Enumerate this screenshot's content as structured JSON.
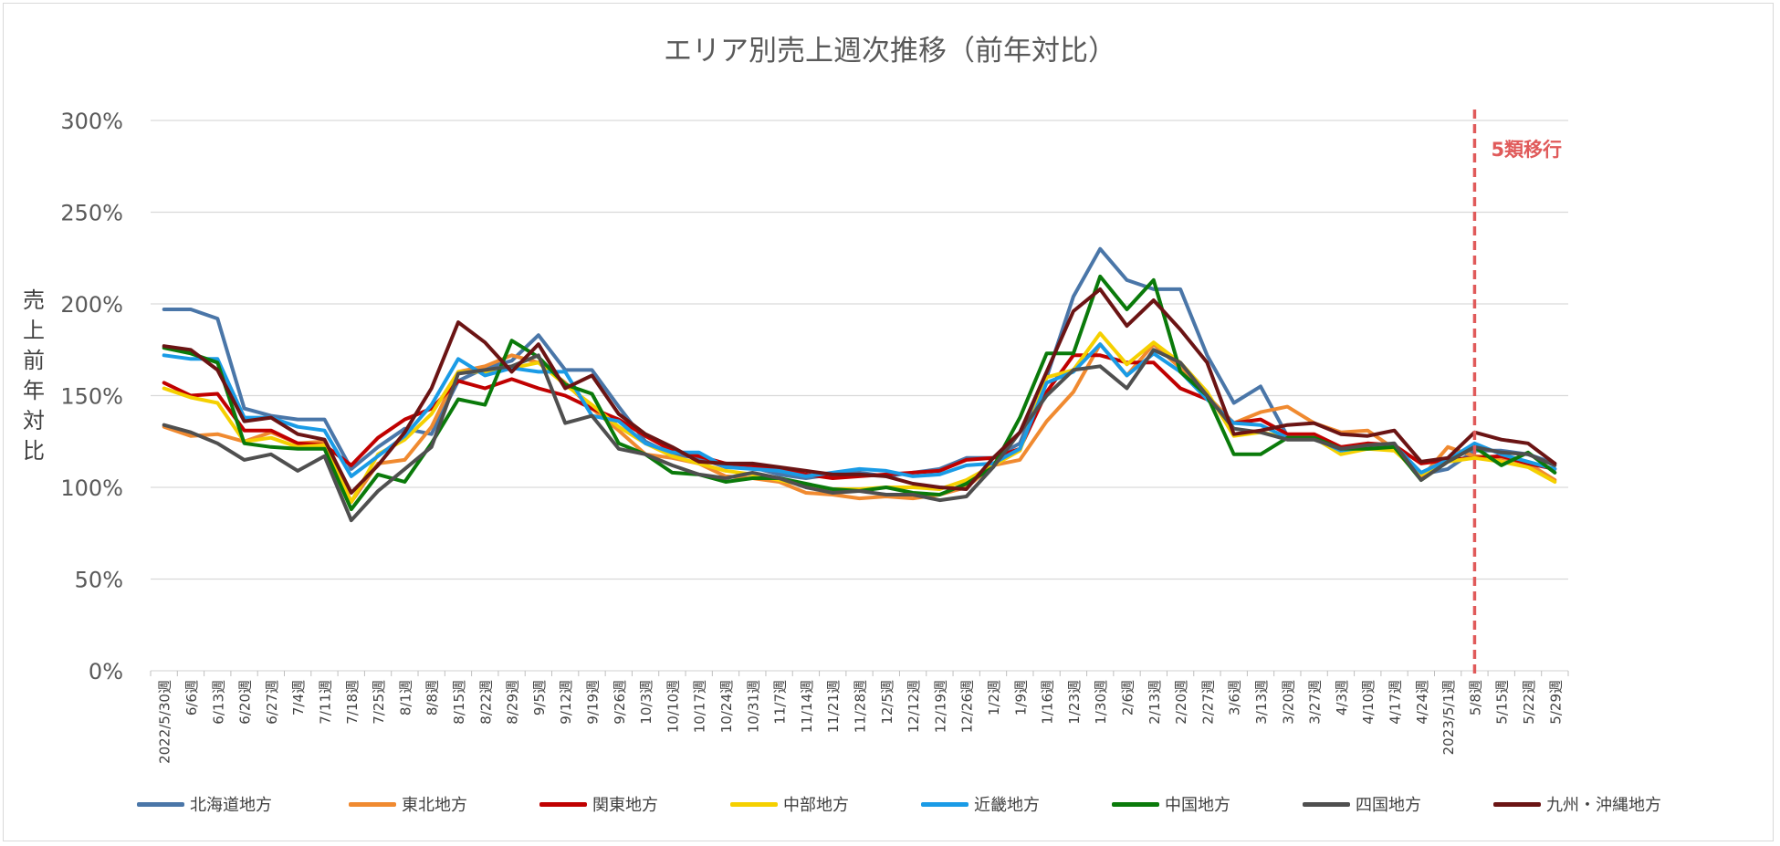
{
  "chart_data": {
    "type": "line",
    "title": "エリア別売上週次推移（前年対比）",
    "ylabel": "売上前年対比",
    "ylim": [
      0,
      300
    ],
    "yticks": [
      "0%",
      "50%",
      "100%",
      "150%",
      "200%",
      "250%",
      "300%"
    ],
    "grid": true,
    "legend_position": "bottom",
    "categories": [
      "2022/5/30週",
      "6/6週",
      "6/13週",
      "6/20週",
      "6/27週",
      "7/4週",
      "7/11週",
      "7/18週",
      "7/25週",
      "8/1週",
      "8/8週",
      "8/15週",
      "8/22週",
      "8/29週",
      "9/5週",
      "9/12週",
      "9/19週",
      "9/26週",
      "10/3週",
      "10/10週",
      "10/17週",
      "10/24週",
      "10/31週",
      "11/7週",
      "11/14週",
      "11/21週",
      "11/28週",
      "12/5週",
      "12/12週",
      "12/19週",
      "12/26週",
      "1/2週",
      "1/9週",
      "1/16週",
      "1/23週",
      "1/30週",
      "2/6週",
      "2/13週",
      "2/20週",
      "2/27週",
      "3/6週",
      "3/13週",
      "3/20週",
      "3/27週",
      "4/3週",
      "4/10週",
      "4/17週",
      "4/24週",
      "2023/5/1週",
      "5/8週",
      "5/15週",
      "5/22週",
      "5/29週"
    ],
    "annotation": {
      "label": "5類移行",
      "category": "5/8週",
      "color": "#e05a5a"
    },
    "series": [
      {
        "name": "北海道地方",
        "color": "#4a76a8",
        "values": [
          197,
          197,
          192,
          143,
          139,
          137,
          137,
          110,
          122,
          132,
          129,
          158,
          165,
          169,
          183,
          164,
          164,
          144,
          125,
          118,
          116,
          111,
          111,
          107,
          105,
          107,
          108,
          106,
          108,
          110,
          116,
          116,
          124,
          160,
          204,
          230,
          213,
          208,
          208,
          172,
          146,
          155,
          128,
          127,
          122,
          121,
          122,
          107,
          110,
          120,
          120,
          118,
          113
        ]
      },
      {
        "name": "東北地方",
        "color": "#f08a30",
        "values": [
          133,
          128,
          129,
          125,
          130,
          124,
          125,
          92,
          113,
          115,
          133,
          163,
          166,
          172,
          168,
          157,
          143,
          131,
          118,
          116,
          113,
          106,
          105,
          103,
          97,
          96,
          94,
          95,
          94,
          96,
          100,
          112,
          115,
          136,
          152,
          178,
          161,
          178,
          165,
          150,
          135,
          141,
          144,
          135,
          130,
          131,
          121,
          105,
          122,
          117,
          116,
          113,
          104
        ]
      },
      {
        "name": "関東地方",
        "color": "#c00000",
        "values": [
          157,
          150,
          151,
          131,
          131,
          124,
          123,
          112,
          127,
          137,
          143,
          158,
          154,
          159,
          154,
          150,
          143,
          137,
          128,
          120,
          117,
          113,
          112,
          110,
          107,
          105,
          106,
          107,
          108,
          109,
          115,
          116,
          121,
          152,
          172,
          172,
          168,
          168,
          154,
          148,
          135,
          137,
          129,
          129,
          122,
          124,
          123,
          113,
          115,
          116,
          117,
          113,
          110
        ]
      },
      {
        "name": "中部地方",
        "color": "#f5d000",
        "values": [
          154,
          149,
          146,
          125,
          127,
          122,
          123,
          92,
          118,
          126,
          140,
          163,
          163,
          165,
          168,
          156,
          145,
          133,
          124,
          117,
          113,
          109,
          107,
          104,
          101,
          99,
          99,
          100,
          100,
          99,
          104,
          112,
          120,
          160,
          164,
          184,
          167,
          179,
          168,
          152,
          128,
          130,
          127,
          127,
          118,
          121,
          120,
          107,
          114,
          116,
          114,
          111,
          103
        ]
      },
      {
        "name": "近畿地方",
        "color": "#1a9be6",
        "values": [
          172,
          170,
          170,
          138,
          138,
          133,
          131,
          106,
          117,
          128,
          145,
          170,
          161,
          165,
          163,
          163,
          139,
          136,
          124,
          119,
          119,
          111,
          110,
          109,
          106,
          108,
          110,
          109,
          106,
          107,
          112,
          113,
          121,
          157,
          163,
          178,
          161,
          173,
          163,
          148,
          135,
          134,
          127,
          127,
          120,
          122,
          123,
          108,
          115,
          124,
          118,
          114,
          110
        ]
      },
      {
        "name": "中国地方",
        "color": "#0a7a0a",
        "values": [
          176,
          173,
          168,
          124,
          122,
          121,
          121,
          88,
          107,
          103,
          124,
          148,
          145,
          180,
          171,
          156,
          151,
          124,
          118,
          108,
          107,
          103,
          105,
          105,
          102,
          99,
          98,
          100,
          97,
          96,
          102,
          111,
          138,
          173,
          173,
          215,
          197,
          213,
          163,
          150,
          118,
          118,
          127,
          127,
          121,
          121,
          122,
          104,
          114,
          122,
          112,
          119,
          108
        ]
      },
      {
        "name": "四国地方",
        "color": "#4f4f4f",
        "values": [
          134,
          130,
          124,
          115,
          118,
          109,
          117,
          82,
          98,
          110,
          122,
          162,
          164,
          166,
          172,
          135,
          139,
          121,
          118,
          112,
          107,
          105,
          108,
          105,
          100,
          97,
          98,
          96,
          96,
          93,
          95,
          111,
          130,
          150,
          164,
          166,
          154,
          175,
          168,
          150,
          132,
          130,
          126,
          126,
          121,
          123,
          124,
          104,
          114,
          122,
          119,
          118,
          112
        ]
      },
      {
        "name": "九州・沖縄地方",
        "color": "#6b1414",
        "values": [
          177,
          175,
          164,
          136,
          138,
          129,
          126,
          97,
          112,
          130,
          154,
          190,
          179,
          163,
          178,
          154,
          161,
          140,
          129,
          122,
          114,
          113,
          113,
          111,
          109,
          107,
          107,
          106,
          102,
          100,
          99,
          116,
          130,
          163,
          196,
          208,
          188,
          202,
          186,
          168,
          129,
          131,
          134,
          135,
          129,
          128,
          131,
          114,
          116,
          130,
          126,
          124,
          113
        ]
      }
    ]
  }
}
